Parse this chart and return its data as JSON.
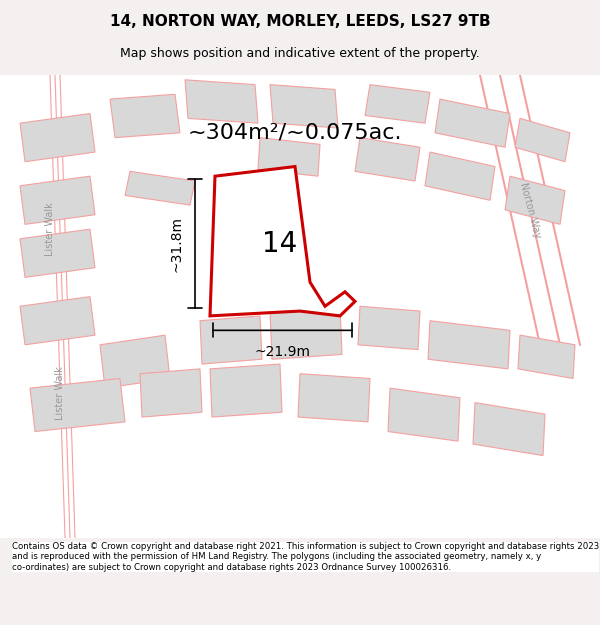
{
  "title": "14, NORTON WAY, MORLEY, LEEDS, LS27 9TB",
  "subtitle": "Map shows position and indicative extent of the property.",
  "area_label": "~304m²/~0.075ac.",
  "property_number": "14",
  "dim_width": "~21.9m",
  "dim_height": "~31.8m",
  "footer": "Contains OS data © Crown copyright and database right 2021. This information is subject to Crown copyright and database rights 2023 and is reproduced with the permission of HM Land Registry. The polygons (including the associated geometry, namely x, y co-ordinates) are subject to Crown copyright and database rights 2023 Ordnance Survey 100026316.",
  "bg_color": "#f5f0f0",
  "map_bg": "#ffffff",
  "building_color": "#d8d8d8",
  "road_color": "#ffffff",
  "outline_color": "#f5a0a0",
  "property_fill": "#ffffff",
  "property_outline": "#cc0000",
  "title_color": "#000000",
  "footer_color": "#000000"
}
